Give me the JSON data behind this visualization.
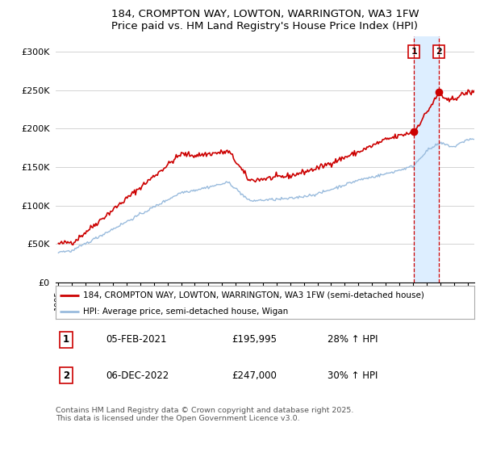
{
  "title": "184, CROMPTON WAY, LOWTON, WARRINGTON, WA3 1FW",
  "subtitle": "Price paid vs. HM Land Registry's House Price Index (HPI)",
  "ylabel_ticks": [
    "£0",
    "£50K",
    "£100K",
    "£150K",
    "£200K",
    "£250K",
    "£300K"
  ],
  "ytick_values": [
    0,
    50000,
    100000,
    150000,
    200000,
    250000,
    300000
  ],
  "ylim": [
    0,
    320000
  ],
  "red_color": "#cc0000",
  "blue_color": "#99bbdd",
  "dashed_color": "#cc0000",
  "shade_color": "#ddeeff",
  "marker1_x": 2021.08,
  "marker2_x": 2022.92,
  "marker1_y": 195995,
  "marker2_y": 247000,
  "legend_label1": "184, CROMPTON WAY, LOWTON, WARRINGTON, WA3 1FW (semi-detached house)",
  "legend_label2": "HPI: Average price, semi-detached house, Wigan",
  "table_row1": [
    "1",
    "05-FEB-2021",
    "£195,995",
    "28% ↑ HPI"
  ],
  "table_row2": [
    "2",
    "06-DEC-2022",
    "£247,000",
    "30% ↑ HPI"
  ],
  "footer": "Contains HM Land Registry data © Crown copyright and database right 2025.\nThis data is licensed under the Open Government Licence v3.0.",
  "background_color": "#ffffff",
  "grid_color": "#cccccc",
  "xlim_left": 1994.8,
  "xlim_right": 2025.5
}
